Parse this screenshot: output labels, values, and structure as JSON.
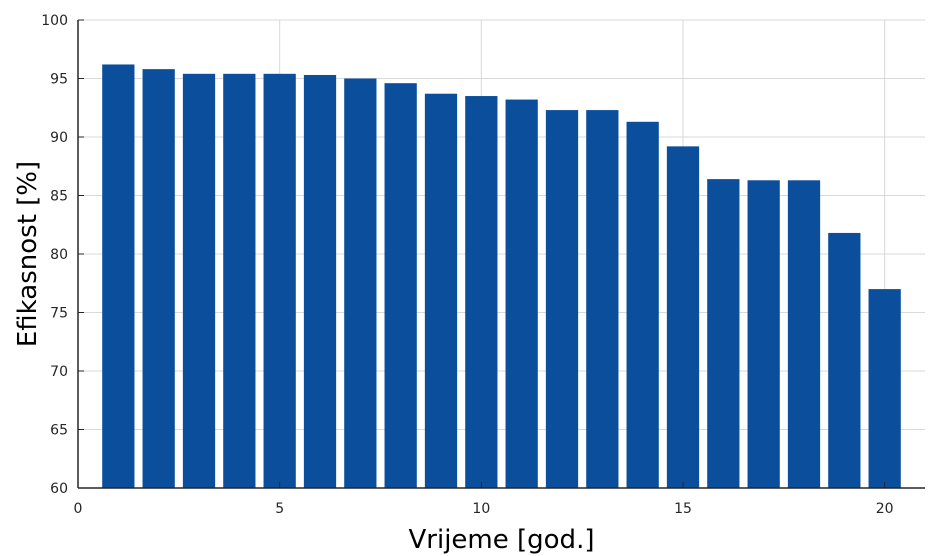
{
  "chart_data": {
    "type": "bar",
    "x": [
      1,
      2,
      3,
      4,
      5,
      6,
      7,
      8,
      9,
      10,
      11,
      12,
      13,
      14,
      15,
      16,
      17,
      18,
      19,
      20
    ],
    "values": [
      96.2,
      95.8,
      95.4,
      95.4,
      95.4,
      95.3,
      95.0,
      94.6,
      93.7,
      93.5,
      93.2,
      92.3,
      92.3,
      91.3,
      89.2,
      86.4,
      86.3,
      86.3,
      81.8,
      77.0
    ],
    "xlabel": "Vrijeme [god.]",
    "ylabel": "Efikasnost [%]",
    "xlim": [
      0,
      21
    ],
    "ylim": [
      60,
      100
    ],
    "xticks": [
      0,
      5,
      10,
      15,
      20
    ],
    "yticks": [
      60,
      65,
      70,
      75,
      80,
      85,
      90,
      95,
      100
    ],
    "grid": true,
    "bar_color": "#0b4f9c",
    "grid_color": "#d9d9d9",
    "axis_color": "#262626"
  }
}
